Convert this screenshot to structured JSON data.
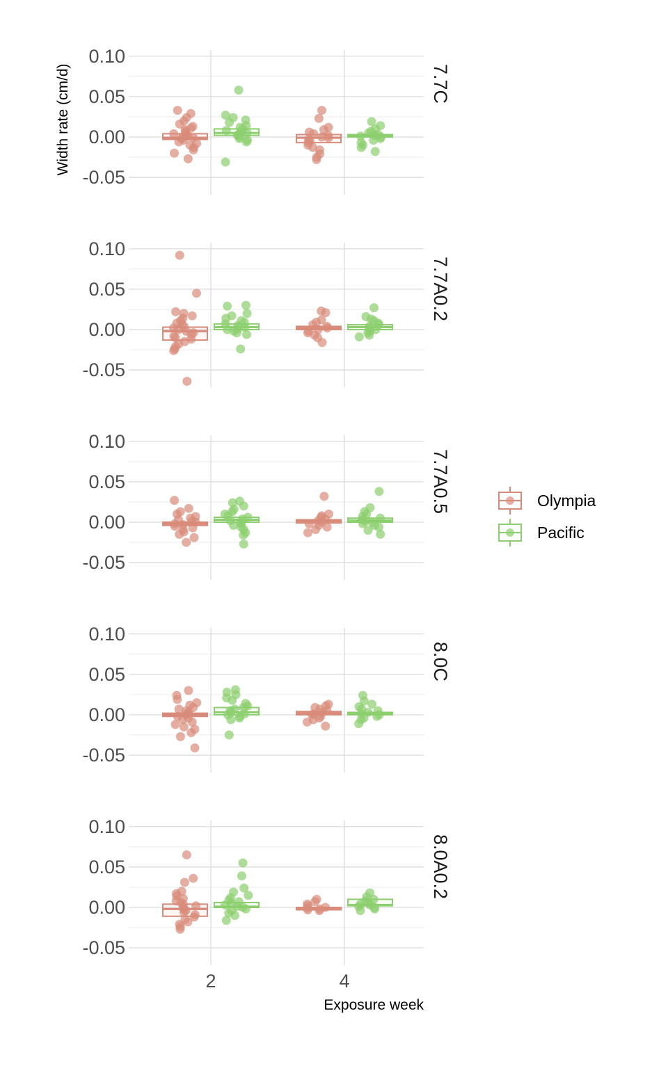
{
  "chart_data": {
    "type": "boxplot-jitter",
    "xlabel": "Exposure week",
    "ylabel": "Width rate (cm/d)",
    "x_categories": [
      "2",
      "4"
    ],
    "y_ticks": [
      "0.10",
      "0.05",
      "0.00",
      "-0.05"
    ],
    "ylim": [
      -0.07,
      0.1
    ],
    "legend": {
      "position": "right",
      "entries": [
        "Olympia",
        "Pacific"
      ]
    },
    "colors": {
      "Olympia": "#d98b7b",
      "Pacific": "#8ccf6e",
      "grid": "#d9d9d9"
    },
    "panels": [
      {
        "label": "7.7C",
        "boxes": [
          {
            "series": "Olympia",
            "week": "2",
            "q1": -0.003,
            "median": -0.001,
            "q3": 0.004
          },
          {
            "series": "Pacific",
            "week": "2",
            "q1": 0.002,
            "median": 0.005,
            "q3": 0.01
          },
          {
            "series": "Olympia",
            "week": "4",
            "q1": -0.007,
            "median": -0.001,
            "q3": 0.003
          },
          {
            "series": "Pacific",
            "week": "4",
            "q1": 0.0,
            "median": 0.002,
            "q3": 0.003
          }
        ],
        "points": [
          {
            "series": "Olympia",
            "week": "2",
            "values": [
              0.033,
              0.029,
              0.024,
              0.02,
              0.016,
              0.013,
              0.011,
              0.009,
              0.007,
              0.005,
              0.004,
              0.002,
              0.001,
              0.0,
              -0.001,
              -0.002,
              -0.004,
              -0.006,
              -0.008,
              -0.01,
              -0.013,
              -0.016,
              -0.02,
              -0.027
            ]
          },
          {
            "series": "Pacific",
            "week": "2",
            "values": [
              0.058,
              0.027,
              0.024,
              0.021,
              0.018,
              0.014,
              0.012,
              0.01,
              0.008,
              0.006,
              0.005,
              0.003,
              0.002,
              0.0,
              -0.002,
              -0.004,
              -0.006,
              -0.031
            ]
          },
          {
            "series": "Olympia",
            "week": "4",
            "values": [
              0.033,
              0.023,
              0.012,
              0.009,
              0.006,
              0.004,
              0.002,
              0.0,
              -0.001,
              -0.003,
              -0.005,
              -0.007,
              -0.01,
              -0.013,
              -0.016,
              -0.021,
              -0.025,
              -0.028
            ]
          },
          {
            "series": "Pacific",
            "week": "4",
            "values": [
              0.019,
              0.014,
              0.01,
              0.007,
              0.005,
              0.003,
              0.002,
              0.001,
              0.0,
              -0.002,
              -0.004,
              -0.007,
              -0.01,
              -0.013,
              -0.018
            ]
          }
        ]
      },
      {
        "label": "7.7A0.2",
        "boxes": [
          {
            "series": "Olympia",
            "week": "2",
            "q1": -0.013,
            "median": -0.002,
            "q3": 0.003
          },
          {
            "series": "Pacific",
            "week": "2",
            "q1": 0.0,
            "median": 0.003,
            "q3": 0.007
          },
          {
            "series": "Olympia",
            "week": "4",
            "q1": 0.0,
            "median": 0.002,
            "q3": 0.004
          },
          {
            "series": "Pacific",
            "week": "4",
            "q1": 0.0,
            "median": 0.003,
            "q3": 0.006
          }
        ],
        "points": [
          {
            "series": "Olympia",
            "week": "2",
            "values": [
              0.092,
              0.045,
              0.022,
              0.02,
              0.017,
              0.014,
              0.011,
              0.008,
              0.006,
              0.004,
              0.002,
              0.0,
              -0.002,
              -0.004,
              -0.006,
              -0.008,
              -0.01,
              -0.012,
              -0.015,
              -0.018,
              -0.021,
              -0.024,
              -0.026,
              -0.064
            ]
          },
          {
            "series": "Pacific",
            "week": "2",
            "values": [
              0.03,
              0.029,
              0.02,
              0.017,
              0.014,
              0.011,
              0.009,
              0.007,
              0.005,
              0.003,
              0.001,
              0.0,
              -0.002,
              -0.004,
              -0.006,
              -0.024
            ]
          },
          {
            "series": "Olympia",
            "week": "4",
            "values": [
              0.023,
              0.021,
              0.012,
              0.009,
              0.006,
              0.004,
              0.002,
              0.0,
              -0.002,
              -0.004,
              -0.007,
              -0.01,
              -0.016
            ]
          },
          {
            "series": "Pacific",
            "week": "4",
            "values": [
              0.027,
              0.016,
              0.013,
              0.011,
              0.008,
              0.006,
              0.004,
              0.002,
              0.0,
              -0.002,
              -0.004,
              -0.007,
              -0.009
            ]
          }
        ]
      },
      {
        "label": "7.7A0.5",
        "boxes": [
          {
            "series": "Olympia",
            "week": "2",
            "q1": -0.004,
            "median": -0.002,
            "q3": 0.0
          },
          {
            "series": "Pacific",
            "week": "2",
            "q1": 0.0,
            "median": 0.003,
            "q3": 0.006
          },
          {
            "series": "Olympia",
            "week": "4",
            "q1": -0.001,
            "median": 0.001,
            "q3": 0.003
          },
          {
            "series": "Pacific",
            "week": "4",
            "q1": 0.0,
            "median": 0.002,
            "q3": 0.005
          }
        ],
        "points": [
          {
            "series": "Olympia",
            "week": "2",
            "values": [
              0.027,
              0.017,
              0.013,
              0.01,
              0.007,
              0.005,
              0.003,
              0.001,
              0.0,
              -0.002,
              -0.003,
              -0.005,
              -0.007,
              -0.009,
              -0.012,
              -0.015,
              -0.019,
              -0.025
            ]
          },
          {
            "series": "Pacific",
            "week": "2",
            "values": [
              0.026,
              0.024,
              0.02,
              0.016,
              0.013,
              0.01,
              0.008,
              0.006,
              0.004,
              0.002,
              0.0,
              -0.002,
              -0.004,
              -0.006,
              -0.009,
              -0.013,
              -0.016,
              -0.027
            ]
          },
          {
            "series": "Olympia",
            "week": "4",
            "values": [
              0.032,
              0.01,
              0.008,
              0.006,
              0.004,
              0.002,
              0.0,
              -0.002,
              -0.004,
              -0.006,
              -0.009,
              -0.013
            ]
          },
          {
            "series": "Pacific",
            "week": "4",
            "values": [
              0.038,
              0.018,
              0.013,
              0.01,
              0.007,
              0.005,
              0.003,
              0.001,
              0.0,
              -0.002,
              -0.004,
              -0.006,
              -0.01,
              -0.015
            ]
          }
        ]
      },
      {
        "label": "8.0C",
        "boxes": [
          {
            "series": "Olympia",
            "week": "2",
            "q1": -0.002,
            "median": 0.0,
            "q3": 0.002
          },
          {
            "series": "Pacific",
            "week": "2",
            "q1": 0.0,
            "median": 0.003,
            "q3": 0.009
          },
          {
            "series": "Olympia",
            "week": "4",
            "q1": 0.0,
            "median": 0.002,
            "q3": 0.004
          },
          {
            "series": "Pacific",
            "week": "4",
            "q1": 0.0,
            "median": 0.002,
            "q3": 0.003
          }
        ],
        "points": [
          {
            "series": "Olympia",
            "week": "2",
            "values": [
              0.03,
              0.024,
              0.019,
              0.015,
              0.012,
              0.009,
              0.007,
              0.005,
              0.003,
              0.001,
              0.0,
              -0.002,
              -0.004,
              -0.006,
              -0.009,
              -0.012,
              -0.015,
              -0.018,
              -0.022,
              -0.027,
              -0.041
            ]
          },
          {
            "series": "Pacific",
            "week": "2",
            "values": [
              0.031,
              0.028,
              0.025,
              0.021,
              0.018,
              0.014,
              0.011,
              0.009,
              0.007,
              0.005,
              0.003,
              0.001,
              0.0,
              -0.002,
              -0.004,
              -0.006,
              -0.025
            ]
          },
          {
            "series": "Olympia",
            "week": "4",
            "values": [
              0.013,
              0.011,
              0.009,
              0.007,
              0.005,
              0.003,
              0.001,
              0.0,
              -0.002,
              -0.004,
              -0.006,
              -0.009,
              -0.014
            ]
          },
          {
            "series": "Pacific",
            "week": "4",
            "values": [
              0.024,
              0.017,
              0.013,
              0.01,
              0.007,
              0.005,
              0.003,
              0.001,
              0.0,
              -0.002,
              -0.004,
              -0.006,
              -0.011
            ]
          }
        ]
      },
      {
        "label": "8.0A0.2",
        "boxes": [
          {
            "series": "Olympia",
            "week": "2",
            "q1": -0.011,
            "median": -0.002,
            "q3": 0.004
          },
          {
            "series": "Pacific",
            "week": "2",
            "q1": 0.0,
            "median": 0.001,
            "q3": 0.006
          },
          {
            "series": "Olympia",
            "week": "4",
            "q1": -0.003,
            "median": -0.001,
            "q3": 0.0
          },
          {
            "series": "Pacific",
            "week": "4",
            "q1": 0.002,
            "median": 0.003,
            "q3": 0.01
          }
        ],
        "points": [
          {
            "series": "Olympia",
            "week": "2",
            "values": [
              0.065,
              0.036,
              0.031,
              0.02,
              0.017,
              0.014,
              0.011,
              0.008,
              0.006,
              0.004,
              0.002,
              0.0,
              -0.002,
              -0.004,
              -0.006,
              -0.009,
              -0.012,
              -0.015,
              -0.018,
              -0.021,
              -0.024,
              -0.027
            ]
          },
          {
            "series": "Pacific",
            "week": "2",
            "values": [
              0.055,
              0.039,
              0.024,
              0.019,
              0.015,
              0.012,
              0.009,
              0.007,
              0.005,
              0.003,
              0.001,
              0.0,
              -0.002,
              -0.004,
              -0.007,
              -0.01,
              -0.016
            ]
          },
          {
            "series": "Olympia",
            "week": "4",
            "values": [
              0.01,
              0.007,
              0.004,
              0.002,
              0.0,
              -0.001,
              -0.002,
              -0.003,
              -0.004
            ]
          },
          {
            "series": "Pacific",
            "week": "4",
            "values": [
              0.018,
              0.013,
              0.01,
              0.008,
              0.006,
              0.004,
              0.003,
              0.001,
              0.0,
              -0.002,
              -0.004
            ]
          }
        ]
      }
    ]
  }
}
